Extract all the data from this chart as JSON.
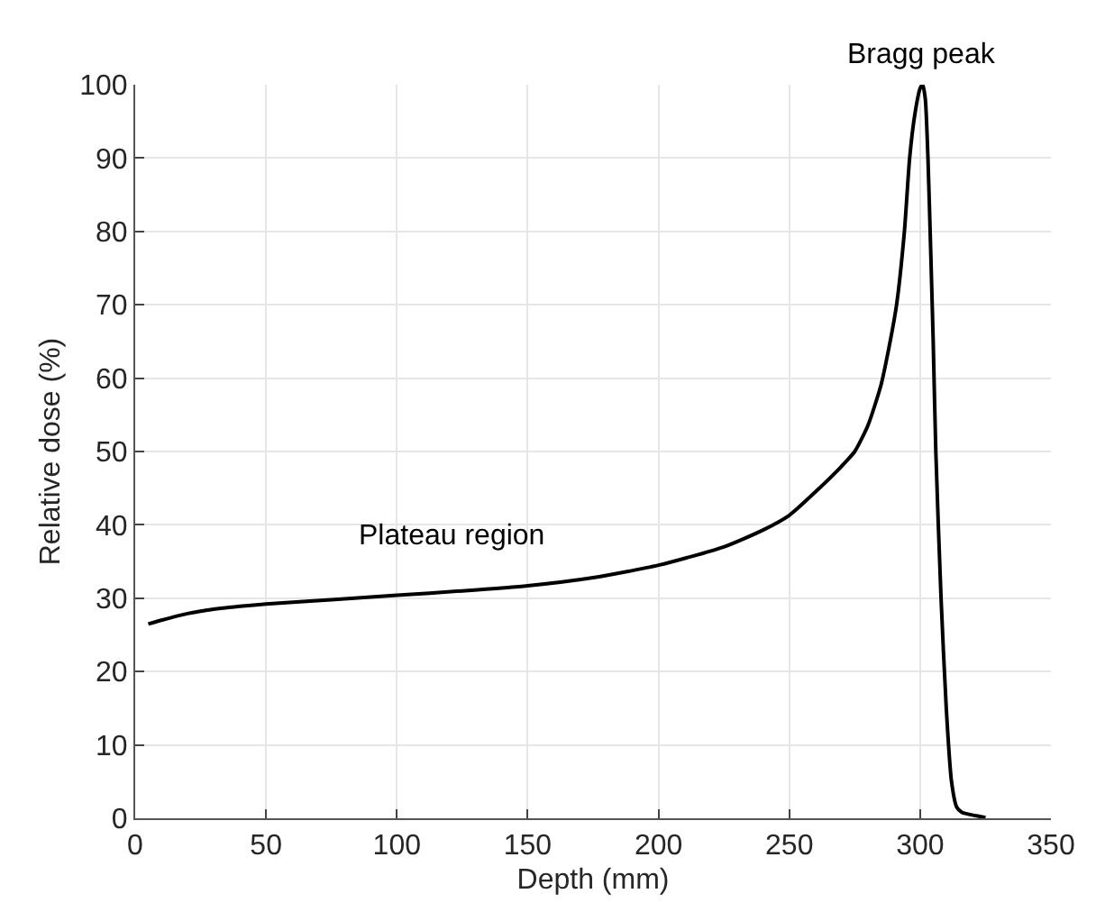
{
  "chart_data": {
    "type": "line",
    "xlabel": "Depth (mm)",
    "ylabel": "Relative dose (%)",
    "x": [
      5,
      10,
      20,
      30,
      40,
      50,
      75,
      100,
      125,
      150,
      175,
      200,
      225,
      240,
      250,
      260,
      270,
      275,
      280,
      285,
      288,
      291,
      294,
      296,
      298,
      300,
      301,
      302,
      303,
      304,
      305,
      306,
      308,
      310,
      312,
      314,
      316,
      318,
      322,
      325
    ],
    "series": [
      {
        "color": "#000000",
        "values": [
          26.5,
          27,
          27.9,
          28.5,
          28.9,
          29.2,
          29.8,
          30.4,
          31,
          31.7,
          32.8,
          34.5,
          37,
          39.3,
          41.3,
          44.5,
          48,
          50,
          53.5,
          59,
          64,
          70,
          80,
          90,
          96,
          99.5,
          100,
          98,
          90,
          78,
          65,
          50,
          30,
          15,
          5,
          1.5,
          0.8,
          0.6,
          0.3,
          0.1
        ]
      }
    ],
    "xlim": [
      0,
      350
    ],
    "xticks": [
      0,
      50,
      100,
      150,
      200,
      250,
      300,
      350
    ],
    "ylim": [
      0,
      100
    ],
    "yticks": [
      0,
      10,
      20,
      30,
      40,
      50,
      60,
      70,
      80,
      90,
      100
    ],
    "grid": true,
    "line_style": "solid",
    "marker": "none",
    "annotations": [
      "Plateau region",
      {
        "text": "Bragg peak",
        "x": 301,
        "y": 100
      }
    ]
  }
}
